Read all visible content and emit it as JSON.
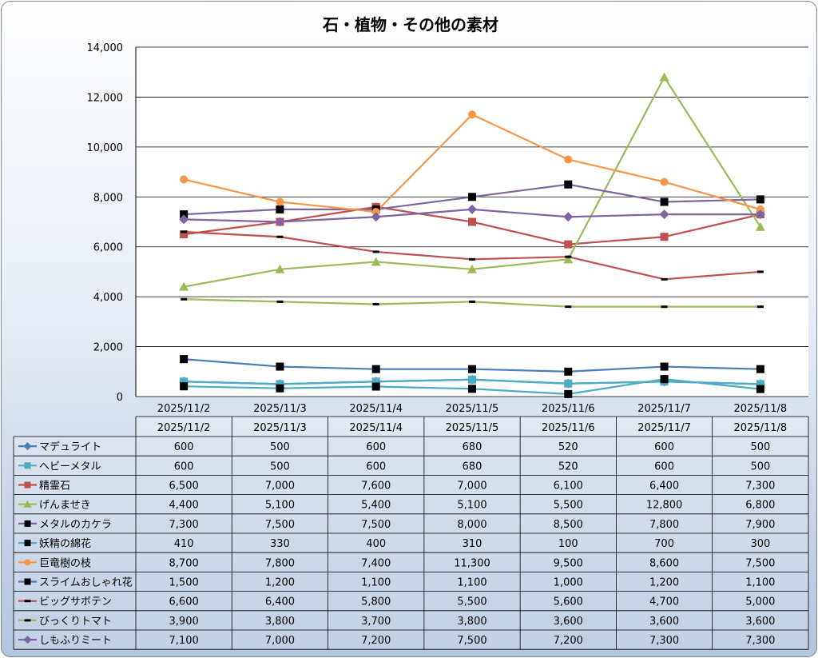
{
  "chart_data": {
    "type": "line",
    "title": "石・植物・その他の素材",
    "categories": [
      "2025/11/2",
      "2025/11/3",
      "2025/11/4",
      "2025/11/5",
      "2025/11/6",
      "2025/11/7",
      "2025/11/8"
    ],
    "ylim": [
      0,
      14000
    ],
    "yticks": [
      0,
      2000,
      4000,
      6000,
      8000,
      10000,
      12000,
      14000
    ],
    "ytick_labels": [
      "0",
      "2,000",
      "4,000",
      "6,000",
      "8,000",
      "10,000",
      "12,000",
      "14,000"
    ],
    "grid": true,
    "legend": "data-table-below",
    "series": [
      {
        "name": "マデュライト",
        "values": [
          600,
          500,
          600,
          680,
          520,
          600,
          500
        ],
        "labels": [
          "600",
          "500",
          "600",
          "680",
          "520",
          "600",
          "500"
        ],
        "color": "#4a7ebb",
        "marker": "diamond",
        "marker_color": "#4a7ebb"
      },
      {
        "name": "ヘビーメタル",
        "values": [
          600,
          500,
          600,
          680,
          520,
          600,
          500
        ],
        "labels": [
          "600",
          "500",
          "600",
          "680",
          "520",
          "600",
          "500"
        ],
        "color": "#4bacc6",
        "marker": "square",
        "marker_color": "#4bacc6"
      },
      {
        "name": "精霊石",
        "values": [
          6500,
          7000,
          7600,
          7000,
          6100,
          6400,
          7300
        ],
        "labels": [
          "6,500",
          "7,000",
          "7,600",
          "7,000",
          "6,100",
          "6,400",
          "7,300"
        ],
        "color": "#c0504d",
        "marker": "square",
        "marker_color": "#c0504d"
      },
      {
        "name": "げんませき",
        "values": [
          4400,
          5100,
          5400,
          5100,
          5500,
          12800,
          6800
        ],
        "labels": [
          "4,400",
          "5,100",
          "5,400",
          "5,100",
          "5,500",
          "12,800",
          "6,800"
        ],
        "color": "#9bbb59",
        "marker": "triangle",
        "marker_color": "#9bbb59"
      },
      {
        "name": "メタルのカケラ",
        "values": [
          7300,
          7500,
          7500,
          8000,
          8500,
          7800,
          7900
        ],
        "labels": [
          "7,300",
          "7,500",
          "7,500",
          "8,000",
          "8,500",
          "7,800",
          "7,900"
        ],
        "color": "#8064a2",
        "marker": "square",
        "marker_color": "#000000"
      },
      {
        "name": "妖精の綿花",
        "values": [
          410,
          330,
          400,
          310,
          100,
          700,
          300
        ],
        "labels": [
          "410",
          "330",
          "400",
          "310",
          "100",
          "700",
          "300"
        ],
        "color": "#4bacc6",
        "marker": "square",
        "marker_color": "#000000"
      },
      {
        "name": "巨竜樹の枝",
        "values": [
          8700,
          7800,
          7400,
          11300,
          9500,
          8600,
          7500
        ],
        "labels": [
          "8,700",
          "7,800",
          "7,400",
          "11,300",
          "9,500",
          "8,600",
          "7,500"
        ],
        "color": "#f79646",
        "marker": "circle",
        "marker_color": "#f79646"
      },
      {
        "name": "スライムおしゃれ花",
        "values": [
          1500,
          1200,
          1100,
          1100,
          1000,
          1200,
          1100
        ],
        "labels": [
          "1,500",
          "1,200",
          "1,100",
          "1,100",
          "1,000",
          "1,200",
          "1,100"
        ],
        "color": "#4a7ebb",
        "marker": "square",
        "marker_color": "#000000"
      },
      {
        "name": "ビッグサボテン",
        "values": [
          6600,
          6400,
          5800,
          5500,
          5600,
          4700,
          5000
        ],
        "labels": [
          "6,600",
          "6,400",
          "5,800",
          "5,500",
          "5,600",
          "4,700",
          "5,000"
        ],
        "color": "#c0504d",
        "marker": "dash",
        "marker_color": "#000000"
      },
      {
        "name": "びっくりトマト",
        "values": [
          3900,
          3800,
          3700,
          3800,
          3600,
          3600,
          3600
        ],
        "labels": [
          "3,900",
          "3,800",
          "3,700",
          "3,800",
          "3,600",
          "3,600",
          "3,600"
        ],
        "color": "#9bbb59",
        "marker": "dash",
        "marker_color": "#000000"
      },
      {
        "name": "しもふりミート",
        "values": [
          7100,
          7000,
          7200,
          7500,
          7200,
          7300,
          7300
        ],
        "labels": [
          "7,100",
          "7,000",
          "7,200",
          "7,500",
          "7,200",
          "7,300",
          "7,300"
        ],
        "color": "#8064a2",
        "marker": "diamond",
        "marker_color": "#8064a2"
      }
    ]
  }
}
